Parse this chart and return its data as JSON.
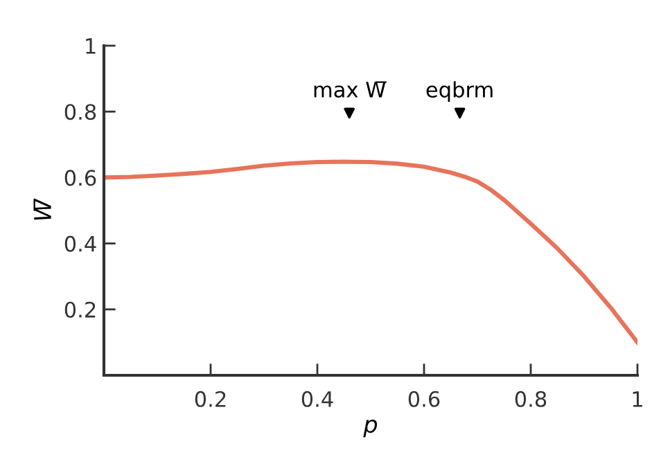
{
  "chart_data": {
    "type": "line",
    "xlabel": "p",
    "ylabel": "W̅",
    "x": [
      0,
      0.05,
      0.1,
      0.15,
      0.2,
      0.25,
      0.3,
      0.35,
      0.4,
      0.45,
      0.5,
      0.55,
      0.6,
      0.65,
      0.675,
      0.7,
      0.725,
      0.75,
      0.8,
      0.85,
      0.9,
      0.95,
      1
    ],
    "series": [
      {
        "color": "#e8735a",
        "values": [
          0.6,
          0.602,
          0.606,
          0.611,
          0.617,
          0.626,
          0.636,
          0.643,
          0.647,
          0.648,
          0.647,
          0.642,
          0.633,
          0.615,
          0.603,
          0.588,
          0.563,
          0.532,
          0.46,
          0.385,
          0.3,
          0.205,
          0.1
        ]
      }
    ],
    "xlim": [
      0,
      1
    ],
    "ylim": [
      0,
      1
    ],
    "xticks": [
      0.2,
      0.4,
      0.6,
      0.8,
      1
    ],
    "yticks": [
      0.2,
      0.4,
      0.6,
      0.8,
      1
    ],
    "annotations": [
      "max W̅",
      "eqbrm"
    ],
    "grid": false,
    "legend": false
  }
}
